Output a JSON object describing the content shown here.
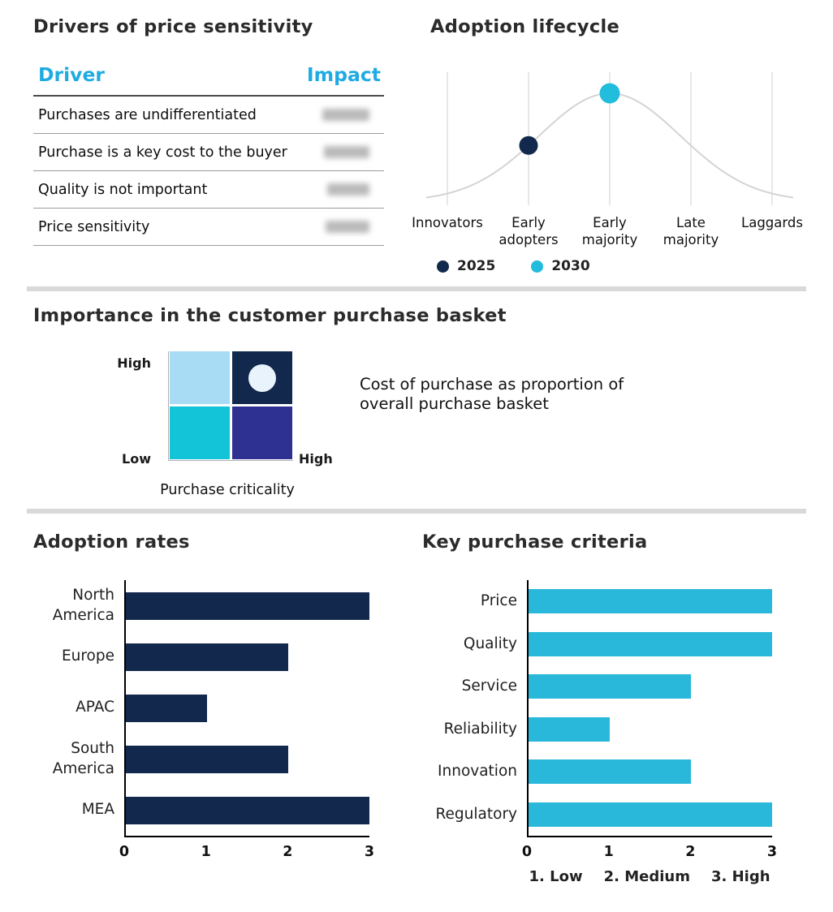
{
  "colors": {
    "navy": "#12284c",
    "cyan": "#29b8da",
    "header_cyan": "#1fabe2",
    "light_blue": "#a7dcf4",
    "teal": "#13c3d8",
    "indigo": "#2e3192",
    "curve_gray": "#d4d4d4"
  },
  "chart_data": [
    {
      "type": "table",
      "title": "Drivers of price sensitivity",
      "columns": [
        "Driver",
        "Impact"
      ],
      "rows": [
        "Purchases are undifferentiated",
        "Purchase is a key cost to the buyer",
        "Quality is not important",
        "Price sensitivity"
      ],
      "impact_values_blurred": true
    },
    {
      "type": "line",
      "title": "Adoption lifecycle",
      "shape": "bell-curve",
      "categories": [
        "Innovators",
        "Early adopters",
        "Early majority",
        "Late majority",
        "Laggards"
      ],
      "markers": [
        {
          "series": "2025",
          "category": "Early adopters",
          "color": "#12284c"
        },
        {
          "series": "2030",
          "category": "Early majority",
          "color": "#22bcdc"
        }
      ],
      "legend_position": "bottom",
      "grid": "vertical"
    },
    {
      "type": "heatmap",
      "title": "Importance in the customer purchase basket",
      "x_label": "Purchase criticality",
      "y_high": "High",
      "origin_low": "Low",
      "x_high": "High",
      "annotation": "Cost of purchase as proportion of overall purchase basket",
      "cells": [
        {
          "pos": "top-left",
          "color": "#a7dcf4"
        },
        {
          "pos": "top-right",
          "color": "#12284c",
          "marker": "circle"
        },
        {
          "pos": "bottom-left",
          "color": "#13c3d8"
        },
        {
          "pos": "bottom-right",
          "color": "#2e3192"
        }
      ]
    },
    {
      "type": "bar",
      "orientation": "horizontal",
      "title": "Adoption rates",
      "categories": [
        "North America",
        "Europe",
        "APAC",
        "South America",
        "MEA"
      ],
      "values": [
        3,
        2,
        1,
        2,
        3
      ],
      "xlim": [
        0,
        3
      ],
      "xticks": [
        "0",
        "1",
        "2",
        "3"
      ],
      "bar_color": "#12284c"
    },
    {
      "type": "bar",
      "orientation": "horizontal",
      "title": "Key purchase criteria",
      "categories": [
        "Price",
        "Quality",
        "Service",
        "Reliability",
        "Innovation",
        "Regulatory"
      ],
      "values": [
        3,
        3,
        2,
        1,
        2,
        3
      ],
      "xlim": [
        0,
        3
      ],
      "xticks": [
        "0",
        "1",
        "2",
        "3"
      ],
      "bar_color": "#29b8da",
      "footnote": [
        "1. Low",
        "2. Medium",
        "3. High"
      ]
    }
  ]
}
